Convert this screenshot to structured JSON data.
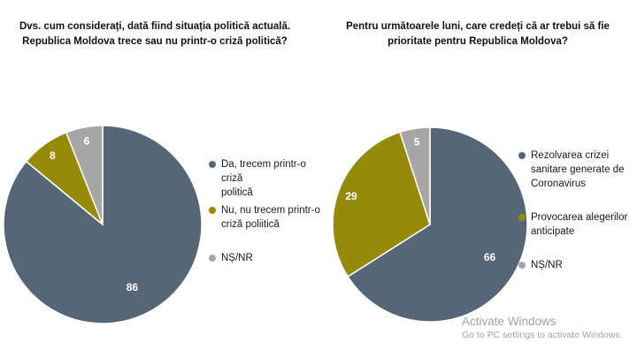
{
  "chart_data": [
    {
      "type": "pie",
      "title_lines": [
        "Dvs. cum considerați, dată fiind situația politică actuală.",
        "Republica Moldova trece sau nu printr-o criză politică?"
      ],
      "slices": [
        {
          "label": "Da, trecem printr-o criză politică",
          "label_lines": [
            "Da, trecem printr-o criză",
            "politică"
          ],
          "value": 86,
          "color": "#556677"
        },
        {
          "label": "Nu, nu trecem printr-o criză poliitică",
          "label_lines": [
            "Nu, nu trecem printr-o",
            "criză poliitică"
          ],
          "value": 8,
          "color": "#968b08"
        },
        {
          "label": "NȘ/NR",
          "label_lines": [
            "NȘ/NR"
          ],
          "value": 6,
          "color": "#a6a6a6"
        }
      ],
      "legend_position": "right"
    },
    {
      "type": "pie",
      "title_lines": [
        "Pentru următoarele luni, care credeți că ar trebui să fie",
        "prioritate pentru Republica Moldova?"
      ],
      "slices": [
        {
          "label": "Rezolvarea crizei sanitare generate de Coronavirus",
          "label_lines": [
            "Rezolvarea crizei",
            "sanitare generate de",
            "Coronavirus"
          ],
          "value": 66,
          "color": "#556677"
        },
        {
          "label": "Provocarea alegerilor anticipate",
          "label_lines": [
            "Provocarea alegerilor",
            "anticipate"
          ],
          "value": 29,
          "color": "#968b08"
        },
        {
          "label": "NȘ/NR",
          "label_lines": [
            "NȘ/NR"
          ],
          "value": 5,
          "color": "#a6a6a6"
        }
      ],
      "legend_position": "right"
    }
  ],
  "watermark": {
    "line1": "Activate Windows",
    "line2": "Go to PC settings to activate Windows."
  }
}
